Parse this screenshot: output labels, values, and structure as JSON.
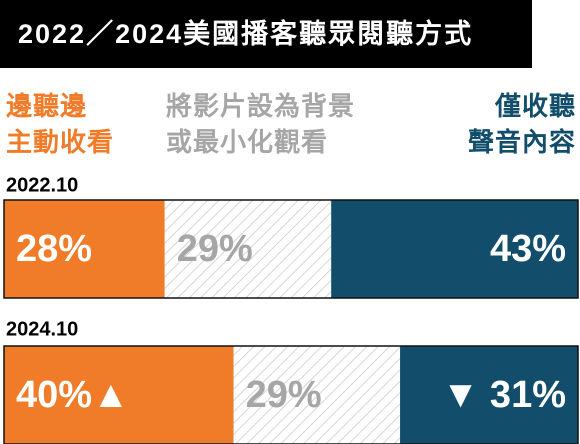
{
  "chart_data": {
    "type": "stacked-bar-horizontal",
    "title": "2022／2024美國播客聽眾閱聽方式",
    "categories": [
      "2022.10",
      "2024.10"
    ],
    "xlim": [
      0,
      100
    ],
    "series": [
      {
        "name": "邊聽邊\n主動收看",
        "color": "#f07c2a",
        "values": [
          28,
          40
        ],
        "value_labels": [
          "28%",
          "40%▲"
        ]
      },
      {
        "name": "將影片設為背景\n或最小化觀看",
        "color": "#a6a6a6",
        "values": [
          29,
          29
        ],
        "value_labels": [
          "29%",
          "29%"
        ]
      },
      {
        "name": "僅收聽\n聲音內容",
        "color": "#124e6b",
        "values": [
          43,
          31
        ],
        "value_labels": [
          "43%",
          "▼ 31%"
        ]
      }
    ]
  }
}
